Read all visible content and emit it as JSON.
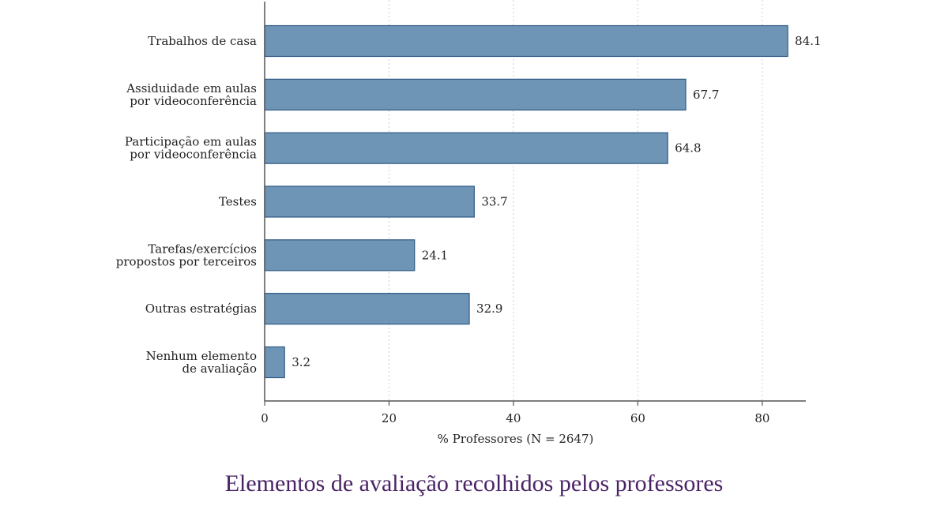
{
  "chart_data": {
    "type": "bar",
    "orientation": "horizontal",
    "categories": [
      [
        "Trabalhos de casa"
      ],
      [
        "Assiduidade em aulas",
        "por videoconferência"
      ],
      [
        "Participação em aulas",
        "por videoconferência"
      ],
      [
        "Testes"
      ],
      [
        "Tarefas/exercícios",
        "propostos por terceiros"
      ],
      [
        "Outras estratégias"
      ],
      [
        "Nenhum elemento",
        "de avaliação"
      ]
    ],
    "values": [
      84.1,
      67.7,
      64.8,
      33.7,
      24.1,
      32.9,
      3.2
    ],
    "value_labels": [
      "84.1",
      "67.7",
      "64.8",
      "33.7",
      "24.1",
      "32.9",
      "3.2"
    ],
    "xlabel": "% Professores (N = 2647)",
    "xlim": [
      0,
      87
    ],
    "xticks": [
      0,
      20,
      40,
      60,
      80
    ],
    "grid": "vertical dotted",
    "bar_color": "#6e94b6",
    "bar_edge_color": "#2f5a85"
  },
  "caption": "Elementos de avaliação recolhidos pelos professores",
  "caption_color": "#4a2366"
}
